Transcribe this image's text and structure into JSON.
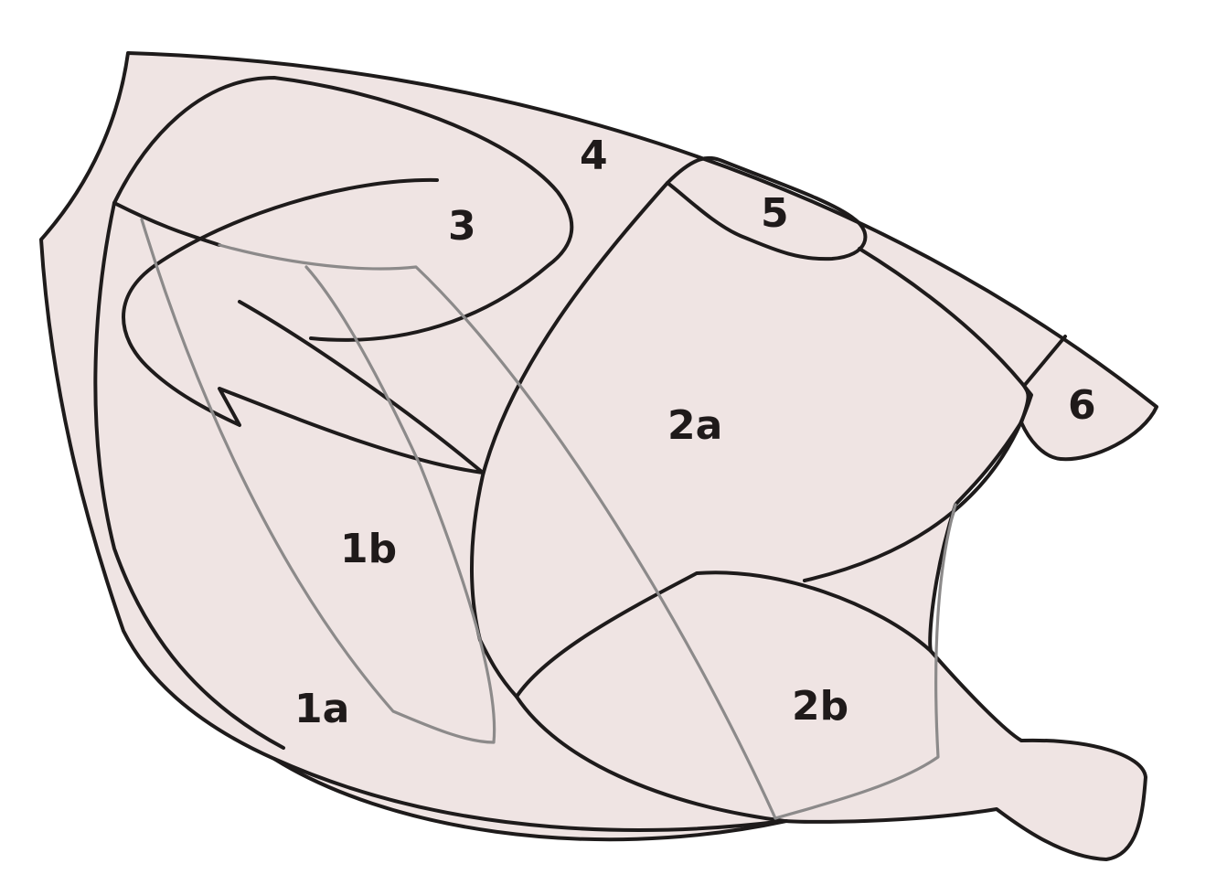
{
  "diagram": {
    "fill_color": "#efe4e3",
    "outline_color": "#1e1b1b",
    "inner_line_color": "#8c8a8a",
    "labels": {
      "r1a": "1a",
      "r1b": "1b",
      "r2a": "2a",
      "r2b": "2b",
      "r3": "3",
      "r4": "4",
      "r5": "5",
      "r6": "6"
    }
  }
}
